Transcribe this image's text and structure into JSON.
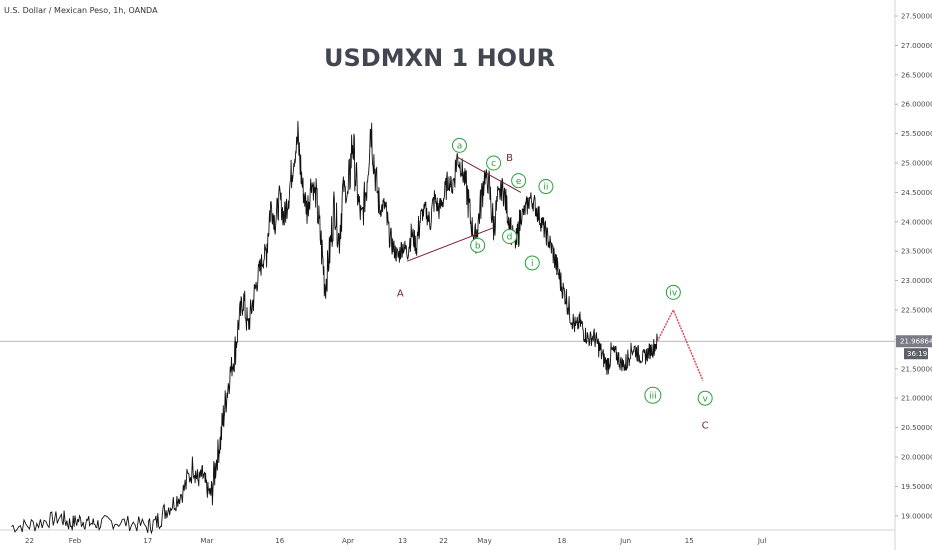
{
  "header": {
    "symbol_info": "U.S. Dollar / Mexican Peso, 1h, OANDA",
    "title": "USDMXN 1 HOUR"
  },
  "colors": {
    "price": "#111111",
    "grid_line": "#9aa0a6",
    "wave_green": "#28a03c",
    "wave_dark": "#7a2030",
    "projection": "#e0404a",
    "price_tag_bg": "#787b86",
    "axis_text": "#4a4a4a"
  },
  "chart_data": {
    "type": "line",
    "instrument": "USDMXN",
    "timeframe": "1h",
    "ylim": [
      18.8,
      27.6
    ],
    "y_ticks": [
      "27.50000",
      "27.00000",
      "26.50000",
      "26.00000",
      "25.50000",
      "25.00000",
      "24.50000",
      "24.00000",
      "23.50000",
      "23.00000",
      "22.50000",
      "22.00000",
      "21.50000",
      "21.00000",
      "20.50000",
      "20.00000",
      "19.50000",
      "19.00000"
    ],
    "y_tick_values": [
      27.5,
      27.0,
      26.5,
      26.0,
      25.5,
      25.0,
      24.5,
      24.0,
      23.5,
      23.0,
      22.5,
      22.0,
      21.5,
      21.0,
      20.5,
      20.0,
      19.5,
      19.0
    ],
    "xlim": [
      -14,
      160
    ],
    "x_ticks": [
      {
        "label": "22",
        "day": -10
      },
      {
        "label": "Feb",
        "day": 0
      },
      {
        "label": "17",
        "day": 16
      },
      {
        "label": "Mar",
        "day": 29
      },
      {
        "label": "16",
        "day": 45
      },
      {
        "label": "Apr",
        "day": 60
      },
      {
        "label": "13",
        "day": 72
      },
      {
        "label": "22",
        "day": 81
      },
      {
        "label": "May",
        "day": 90
      },
      {
        "label": "18",
        "day": 107
      },
      {
        "label": "Jun",
        "day": 121
      },
      {
        "label": "15",
        "day": 135
      },
      {
        "label": "Jul",
        "day": 151
      }
    ],
    "current_price": 21.96864,
    "current_price_label": "21.96864",
    "countdown_label": "36:19",
    "price_path": [
      [
        -14,
        18.82
      ],
      [
        -10,
        18.84
      ],
      [
        -6,
        18.92
      ],
      [
        -3,
        18.97
      ],
      [
        -1,
        18.86
      ],
      [
        1,
        18.93
      ],
      [
        3,
        18.88
      ],
      [
        5,
        18.86
      ],
      [
        8,
        18.9
      ],
      [
        12,
        18.88
      ],
      [
        16,
        18.82
      ],
      [
        18,
        18.9
      ],
      [
        20,
        19.1
      ],
      [
        22,
        19.25
      ],
      [
        24,
        19.45
      ],
      [
        26,
        19.85
      ],
      [
        27,
        19.6
      ],
      [
        28,
        19.7
      ],
      [
        29,
        19.45
      ],
      [
        30,
        19.35
      ],
      [
        31,
        19.9
      ],
      [
        32,
        20.3
      ],
      [
        33,
        20.9
      ],
      [
        34,
        21.4
      ],
      [
        35,
        21.7
      ],
      [
        36,
        22.3
      ],
      [
        37,
        22.7
      ],
      [
        38,
        22.2
      ],
      [
        39,
        22.6
      ],
      [
        40,
        23.0
      ],
      [
        41,
        23.3
      ],
      [
        42,
        23.5
      ],
      [
        43,
        24.3
      ],
      [
        44,
        24.0
      ],
      [
        45,
        24.4
      ],
      [
        46,
        24.05
      ],
      [
        47,
        24.5
      ],
      [
        48,
        25.05
      ],
      [
        49,
        25.4
      ],
      [
        50,
        24.6
      ],
      [
        51,
        24.2
      ],
      [
        52,
        24.7
      ],
      [
        53,
        24.4
      ],
      [
        54,
        23.7
      ],
      [
        55,
        22.9
      ],
      [
        56,
        23.5
      ],
      [
        57,
        24.3
      ],
      [
        58,
        23.7
      ],
      [
        59,
        24.6
      ],
      [
        60,
        24.4
      ],
      [
        61,
        25.4
      ],
      [
        62,
        24.5
      ],
      [
        63,
        24.0
      ],
      [
        64,
        24.6
      ],
      [
        65,
        25.7
      ],
      [
        66,
        24.8
      ],
      [
        67,
        24.2
      ],
      [
        68,
        24.3
      ],
      [
        69,
        23.8
      ],
      [
        70,
        23.55
      ],
      [
        71,
        23.4
      ],
      [
        72,
        23.6
      ],
      [
        73,
        23.5
      ],
      [
        74,
        23.8
      ],
      [
        75,
        23.6
      ],
      [
        76,
        24.1
      ],
      [
        77,
        24.2
      ],
      [
        78,
        24.0
      ],
      [
        79,
        24.4
      ],
      [
        80,
        24.2
      ],
      [
        81,
        24.4
      ],
      [
        82,
        24.7
      ],
      [
        83,
        24.6
      ],
      [
        84,
        25.1
      ],
      [
        85,
        24.9
      ],
      [
        86,
        24.6
      ],
      [
        87,
        24.0
      ],
      [
        88,
        23.7
      ],
      [
        89,
        24.2
      ],
      [
        90,
        24.8
      ],
      [
        91,
        24.6
      ],
      [
        92,
        23.9
      ],
      [
        93,
        24.4
      ],
      [
        94,
        24.6
      ],
      [
        95,
        24.2
      ],
      [
        96,
        23.8
      ],
      [
        97,
        23.6
      ],
      [
        98,
        24.1
      ],
      [
        99,
        24.2
      ],
      [
        100,
        24.4
      ],
      [
        101,
        24.3
      ],
      [
        102,
        24.1
      ],
      [
        103,
        23.9
      ],
      [
        104,
        23.7
      ],
      [
        105,
        23.5
      ],
      [
        106,
        23.2
      ],
      [
        107,
        22.9
      ],
      [
        108,
        22.7
      ],
      [
        109,
        22.4
      ],
      [
        110,
        22.2
      ],
      [
        111,
        22.3
      ],
      [
        112,
        22.1
      ],
      [
        113,
        22.0
      ],
      [
        114,
        22.05
      ],
      [
        115,
        21.9
      ],
      [
        116,
        21.7
      ],
      [
        117,
        21.55
      ],
      [
        118,
        21.8
      ],
      [
        119,
        21.75
      ],
      [
        120,
        21.6
      ],
      [
        121,
        21.55
      ],
      [
        122,
        21.8
      ],
      [
        123,
        21.85
      ],
      [
        124,
        21.72
      ],
      [
        125,
        21.68
      ],
      [
        126,
        21.78
      ],
      [
        127,
        21.85
      ],
      [
        128,
        21.97
      ]
    ],
    "annotations": [
      {
        "text": "A",
        "day": 71.5,
        "y": 22.8,
        "color": "dark",
        "circled": false
      },
      {
        "text": "a",
        "day": 84.5,
        "y": 25.3,
        "color": "green",
        "circled": true
      },
      {
        "text": "b",
        "day": 88.5,
        "y": 23.6,
        "color": "green",
        "circled": true
      },
      {
        "text": "c",
        "day": 92,
        "y": 25.0,
        "color": "green",
        "circled": true
      },
      {
        "text": "B",
        "day": 95.5,
        "y": 25.1,
        "color": "dark",
        "circled": false
      },
      {
        "text": "d",
        "day": 95.5,
        "y": 23.75,
        "color": "green",
        "circled": true
      },
      {
        "text": "e",
        "day": 97.5,
        "y": 24.7,
        "color": "green",
        "circled": true
      },
      {
        "text": "i",
        "day": 100.5,
        "y": 23.3,
        "color": "green",
        "circled": true
      },
      {
        "text": "ii",
        "day": 103.5,
        "y": 24.6,
        "color": "green",
        "circled": true
      },
      {
        "text": "iii",
        "day": 127,
        "y": 21.05,
        "color": "green",
        "circled": true
      },
      {
        "text": "iv",
        "day": 131.5,
        "y": 22.8,
        "color": "green",
        "circled": true
      },
      {
        "text": "v",
        "day": 138.5,
        "y": 21.0,
        "color": "green",
        "circled": true
      },
      {
        "text": "C",
        "day": 138.5,
        "y": 20.55,
        "color": "dark",
        "circled": false
      }
    ],
    "trendlines": [
      {
        "color": "dark",
        "points": [
          [
            73,
            23.33
          ],
          [
            92,
            23.9
          ]
        ]
      },
      {
        "color": "dark",
        "points": [
          [
            84,
            25.1
          ],
          [
            98,
            24.5
          ]
        ]
      },
      {
        "color": "projection",
        "points": [
          [
            128,
            21.97
          ],
          [
            131.5,
            22.5
          ],
          [
            138,
            21.3
          ]
        ]
      }
    ]
  }
}
